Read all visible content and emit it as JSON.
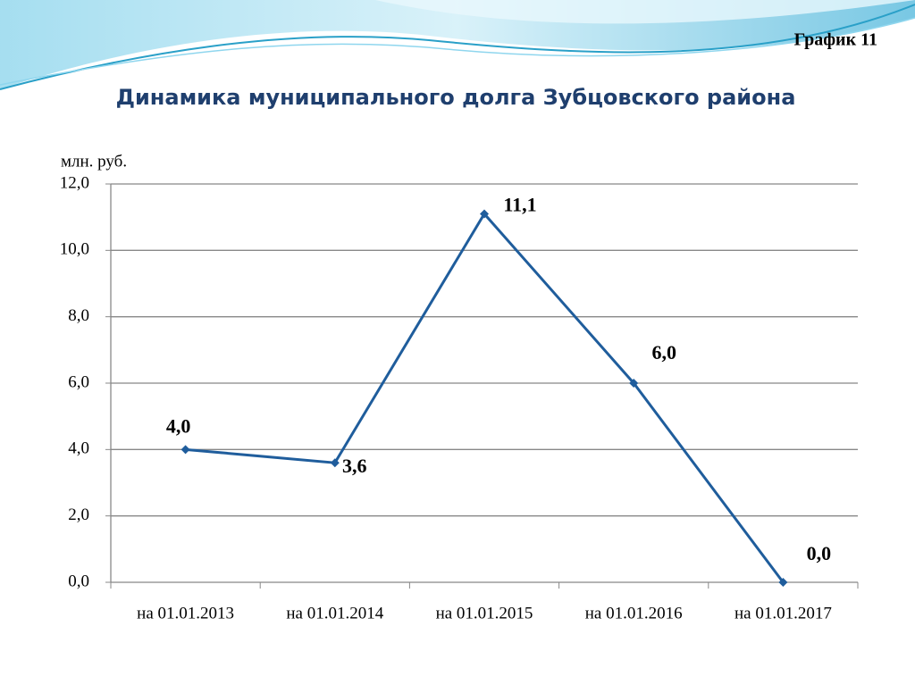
{
  "chart_data": {
    "type": "line",
    "annotation": "График 11",
    "title": "Динамика муниципального долга Зубцовского района",
    "y_label": "млн. руб.",
    "categories": [
      "на 01.01.2013",
      "на 01.01.2014",
      "на 01.01.2015",
      "на 01.01.2016",
      "на 01.01.2017"
    ],
    "values": [
      4.0,
      3.6,
      11.1,
      6.0,
      0.0
    ],
    "value_labels": [
      "4,0",
      "3,6",
      "11,1",
      "6,0",
      "0,0"
    ],
    "color": "#1f5d9c",
    "ylim": [
      0,
      12
    ],
    "yticks": [
      {
        "value": 0,
        "label": "0,0"
      },
      {
        "value": 2,
        "label": "2,0"
      },
      {
        "value": 4,
        "label": "4,0"
      },
      {
        "value": 6,
        "label": "6,0"
      },
      {
        "value": 8,
        "label": "8,0"
      },
      {
        "value": 10,
        "label": "10,0"
      },
      {
        "value": 12,
        "label": "12,0"
      }
    ],
    "grid": true
  }
}
